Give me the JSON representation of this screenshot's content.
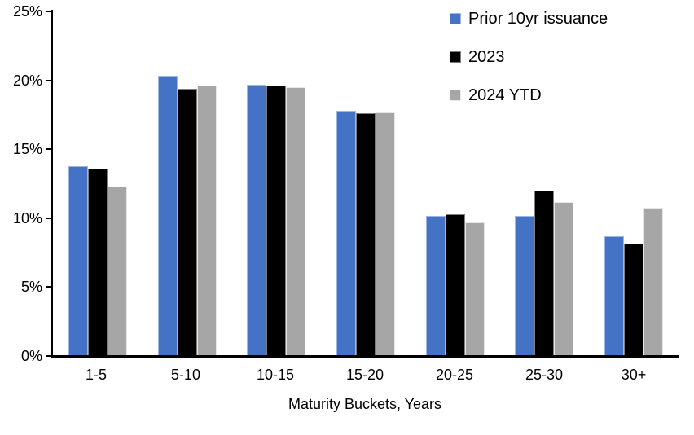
{
  "chart_data": {
    "type": "bar",
    "title": "",
    "xlabel": "Maturity Buckets, Years",
    "ylabel": "",
    "ylim": [
      0,
      25
    ],
    "grid": false,
    "legend_position": "top-right-inside",
    "y_ticks": [
      {
        "value": 0,
        "label": "0%"
      },
      {
        "value": 5,
        "label": "5%"
      },
      {
        "value": 10,
        "label": "10%"
      },
      {
        "value": 15,
        "label": "15%"
      },
      {
        "value": 20,
        "label": "20%"
      },
      {
        "value": 25,
        "label": "25%"
      }
    ],
    "categories": [
      "1-5",
      "5-10",
      "10-15",
      "15-20",
      "20-25",
      "25-30",
      "30+"
    ],
    "series": [
      {
        "name": "Prior 10yr issuance",
        "color": "#4472C4",
        "border_color": "#9DB6E4",
        "values": [
          13.7,
          20.2,
          19.6,
          17.7,
          10.1,
          10.1,
          8.6
        ]
      },
      {
        "name": "2023",
        "color": "#000000",
        "border_color": "#7F7F7F",
        "values": [
          13.5,
          19.3,
          19.5,
          17.5,
          10.2,
          11.9,
          8.1
        ]
      },
      {
        "name": "2024 YTD",
        "color": "#A6A6A6",
        "border_color": "#E7E7E7",
        "values": [
          12.2,
          19.5,
          19.4,
          17.6,
          9.6,
          11.1,
          10.7
        ]
      }
    ],
    "axis_color": "#000000"
  }
}
